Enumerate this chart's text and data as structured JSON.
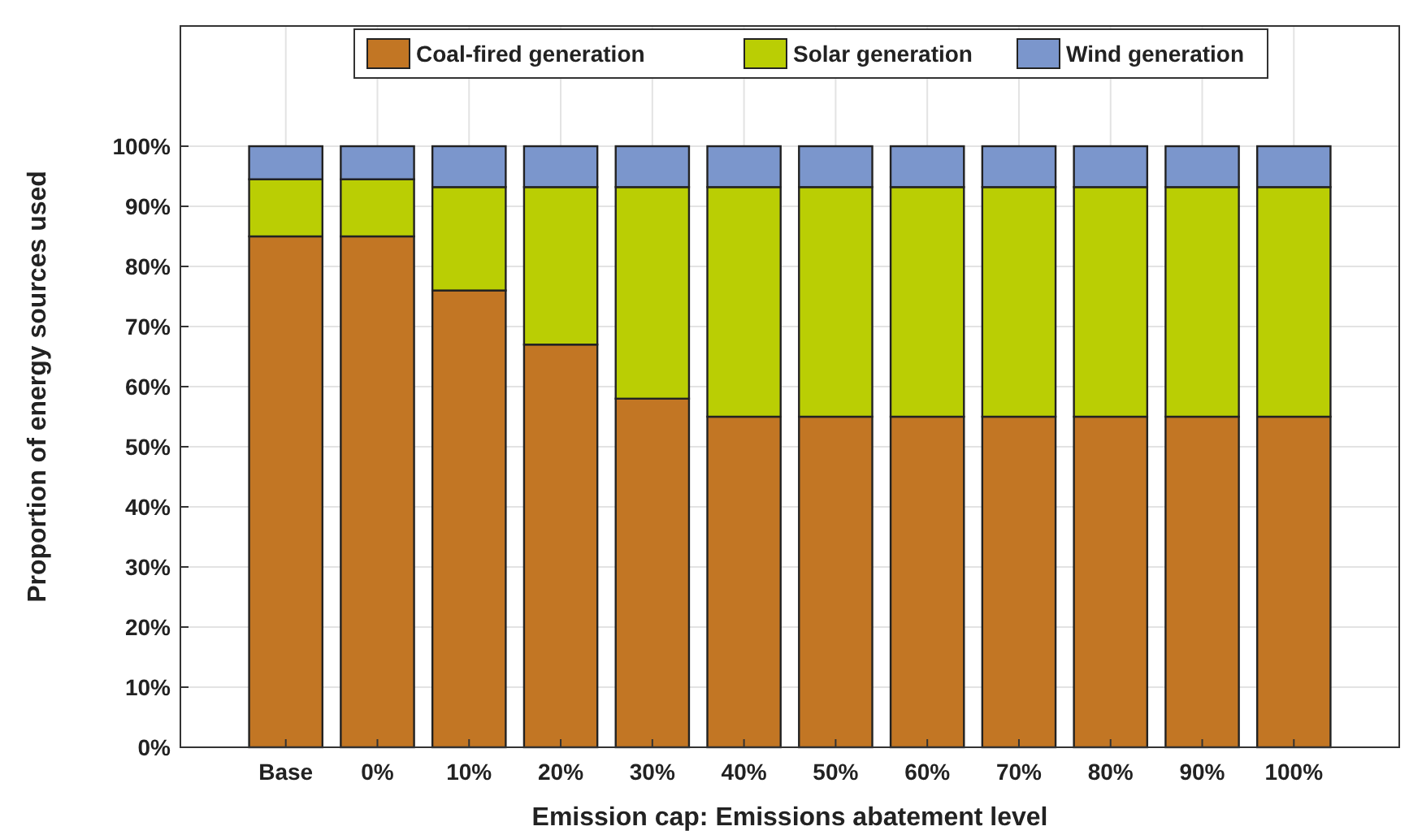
{
  "chart_data": {
    "type": "bar",
    "stacked": true,
    "xlabel": "Emission cap: Emissions abatement level",
    "ylabel": "Proportion of energy sources used",
    "categories": [
      "Base",
      "0%",
      "10%",
      "20%",
      "30%",
      "40%",
      "50%",
      "60%",
      "70%",
      "80%",
      "90%",
      "100%"
    ],
    "series": [
      {
        "name": "Coal-fired generation",
        "color": "#c27624",
        "values": [
          85,
          85,
          76,
          67,
          58,
          55,
          55,
          55,
          55,
          55,
          55,
          55
        ]
      },
      {
        "name": "Solar generation",
        "color": "#bace04",
        "values": [
          9.5,
          9.5,
          17.2,
          26.2,
          35.2,
          38.2,
          38.2,
          38.2,
          38.2,
          38.2,
          38.2,
          38.2
        ]
      },
      {
        "name": "Wind generation",
        "color": "#7b96cc",
        "values": [
          5.5,
          5.5,
          6.8,
          6.8,
          6.8,
          6.8,
          6.8,
          6.8,
          6.8,
          6.8,
          6.8,
          6.8
        ]
      }
    ],
    "ylim": [
      0,
      120
    ],
    "yticks": [
      {
        "value": 0,
        "label": "0%"
      },
      {
        "value": 10,
        "label": "10%"
      },
      {
        "value": 20,
        "label": "20%"
      },
      {
        "value": 30,
        "label": "30%"
      },
      {
        "value": 40,
        "label": "40%"
      },
      {
        "value": 50,
        "label": "50%"
      },
      {
        "value": 60,
        "label": "60%"
      },
      {
        "value": 70,
        "label": "70%"
      },
      {
        "value": 80,
        "label": "80%"
      },
      {
        "value": 90,
        "label": "90%"
      },
      {
        "value": 100,
        "label": "100%"
      }
    ],
    "grid": true,
    "legend": "top"
  }
}
